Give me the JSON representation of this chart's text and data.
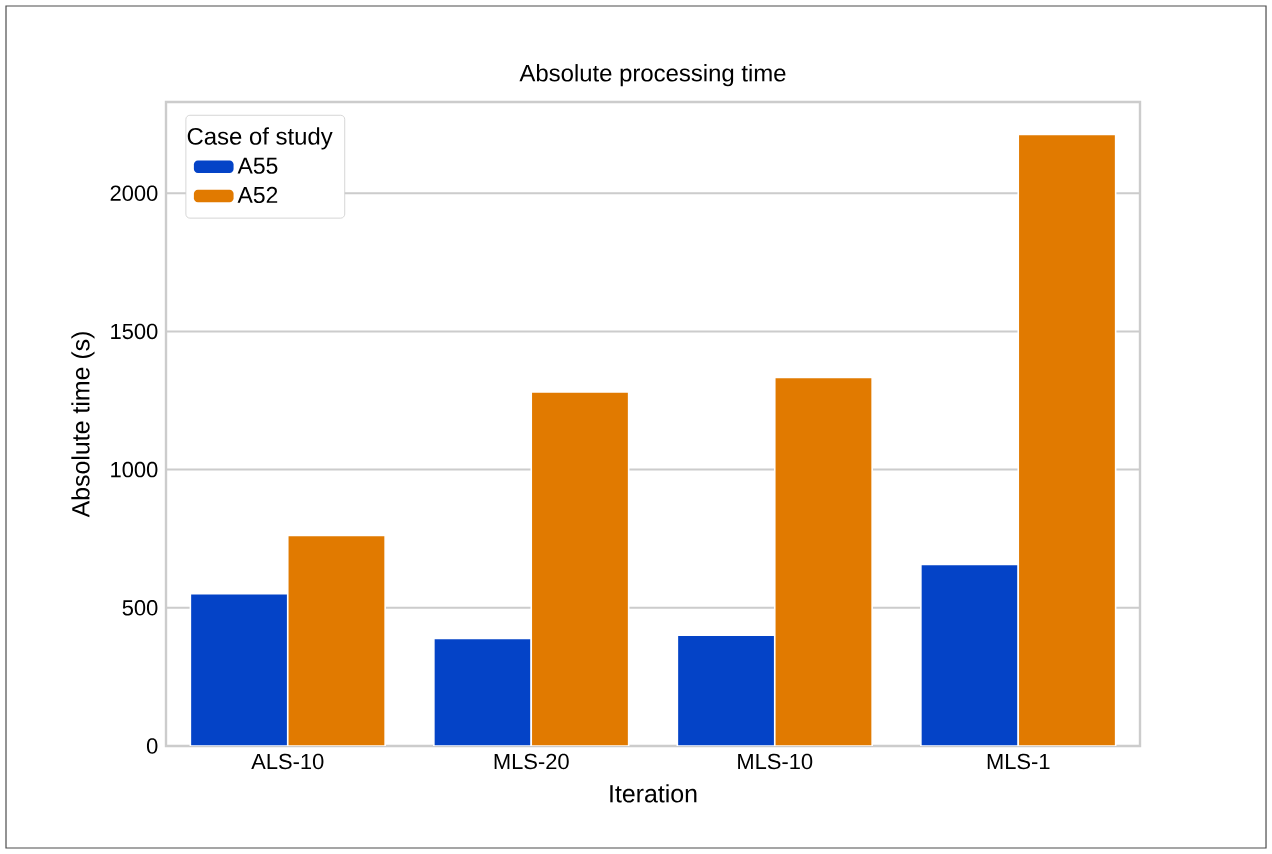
{
  "chart_data": {
    "type": "bar",
    "title": "Absolute processing time",
    "xlabel": "Iteration",
    "ylabel": "Absolute time (s)",
    "legend_title": "Case of study",
    "categories": [
      "ALS-10",
      "MLS-20",
      "MLS-10",
      "MLS-1"
    ],
    "series": [
      {
        "name": "A55",
        "color": "#0443c7",
        "values": [
          551,
          389,
          401,
          657
        ]
      },
      {
        "name": "A52",
        "color": "#e17a00",
        "values": [
          762,
          1281,
          1333,
          2213
        ]
      }
    ],
    "ylim": [
      0,
      2330
    ],
    "yticks": [
      0,
      500,
      1000,
      1500,
      2000
    ],
    "grid": "y",
    "legend": "top left"
  }
}
